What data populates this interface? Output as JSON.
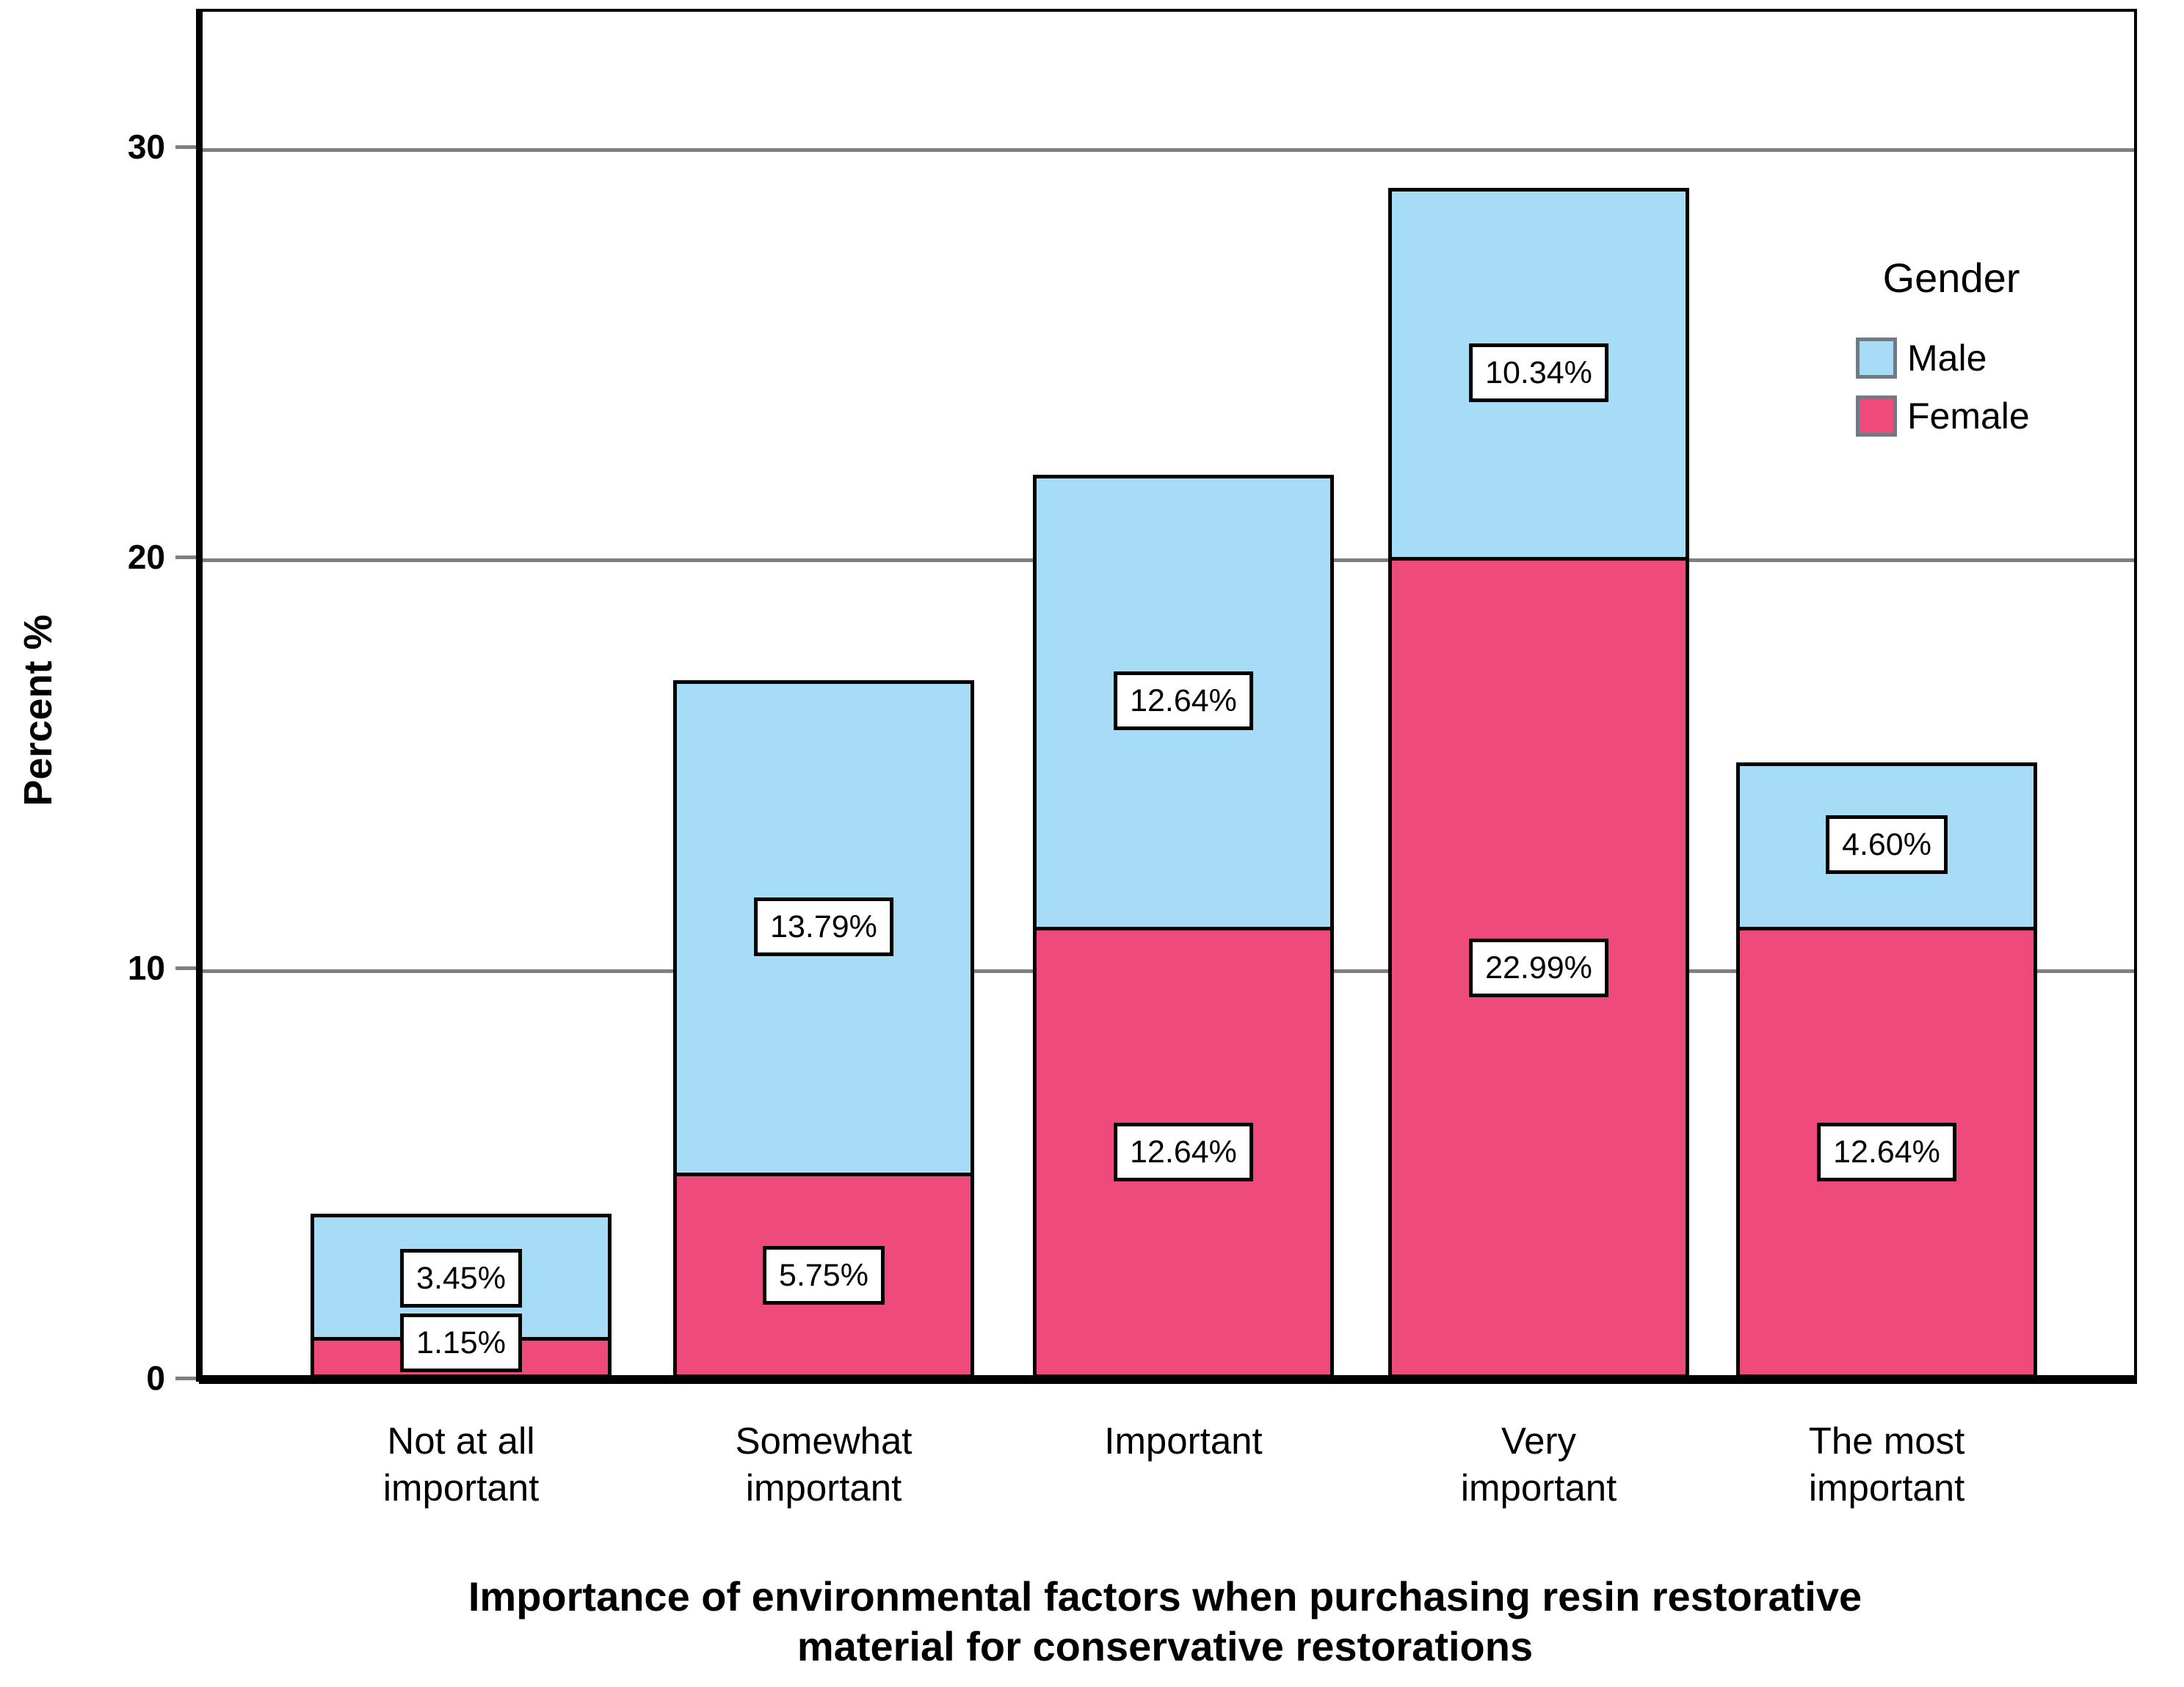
{
  "chart_data": {
    "type": "bar",
    "subtype": "stacked-vertical",
    "title_lines": [
      "Importance of environmental factors when purchasing resin restorative",
      "material for conservative restorations"
    ],
    "ylabel": "Percent %",
    "xlabel_is_title_below_axis": true,
    "ytick_labels": [
      "0",
      "10",
      "20",
      "30"
    ],
    "yticks": [
      0,
      10,
      20,
      30
    ],
    "ylim": [
      0,
      33.4
    ],
    "grid": true,
    "gridline_color": "#7f7f7f",
    "categories": [
      [
        "Not at all",
        "important"
      ],
      [
        "Somewhat",
        "important"
      ],
      [
        "Important"
      ],
      [
        "Very",
        "important"
      ],
      [
        "The most",
        "important"
      ]
    ],
    "stack_bottom_to_top": [
      "Female",
      "Male"
    ],
    "series": [
      {
        "name": "Male",
        "color": "#a6dcf5",
        "bar_heights_axis_units": [
          3,
          12,
          11,
          9,
          4
        ],
        "segment_labels": [
          "3.45%",
          "13.79%",
          "12.64%",
          "10.34%",
          "4.60%"
        ]
      },
      {
        "name": "Female",
        "color": "#ee4a7c",
        "bar_heights_axis_units": [
          1,
          5,
          11,
          20,
          11
        ],
        "segment_labels": [
          "1.15%",
          "5.75%",
          "12.64%",
          "22.99%",
          "12.64%"
        ]
      }
    ],
    "label_center_overrides": [
      {
        "series": "Male",
        "category_index": 0,
        "center_value": 2.43
      },
      {
        "series": "Female",
        "category_index": 0,
        "center_value": 0.86
      }
    ],
    "legend": {
      "title": "Gender",
      "position": "top-right-inside",
      "items": [
        "Male",
        "Female"
      ]
    },
    "colors": {
      "male": "#a6dcf5",
      "female": "#ee4a7c",
      "axis": "#000000",
      "grid": "#7f7f7f",
      "label_box_bg": "#ffffff",
      "legend_swatch_border": "#6e7a84"
    }
  }
}
